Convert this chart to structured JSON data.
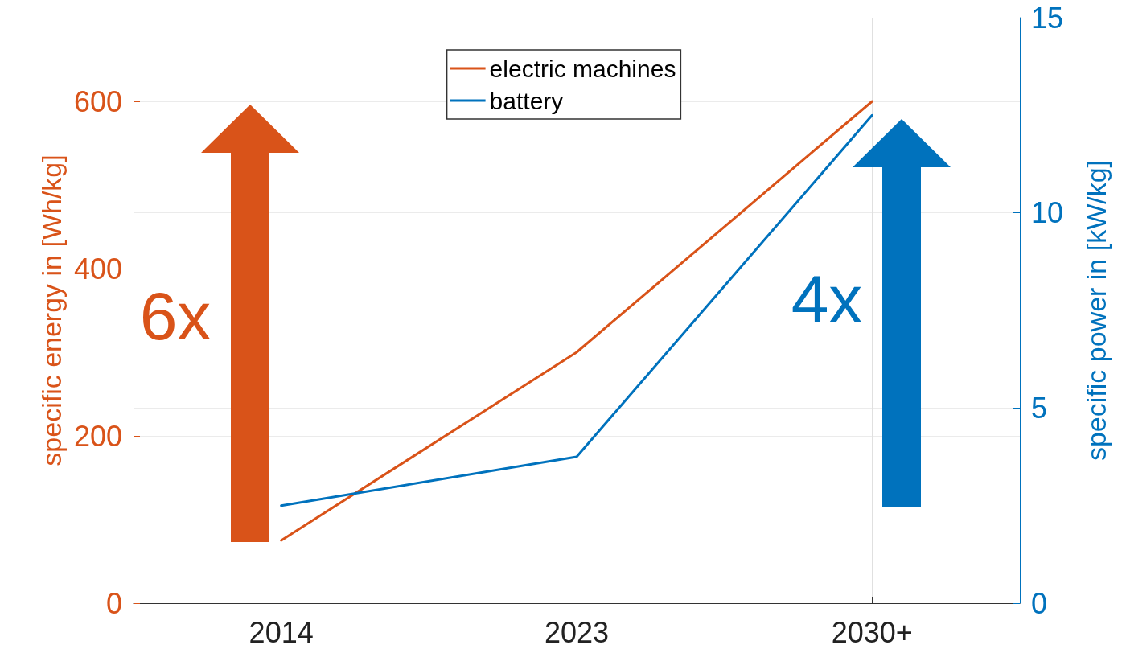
{
  "chart_data": {
    "type": "line",
    "categories": [
      "2014",
      "2023",
      "2030+"
    ],
    "ylabel": "specific energy in [Wh/kg]",
    "y2label": "specific power in [kW/kg]",
    "series": [
      {
        "name": "electric machines",
        "color": "#d95319",
        "values": [
          75,
          300,
          600
        ]
      },
      {
        "name": "battery",
        "color": "#0072bd",
        "values": [
          2.5,
          3.75,
          12.5
        ],
        "axis": "y2"
      }
    ],
    "ylim": [
      0,
      700
    ],
    "yticks": [
      0,
      200,
      400,
      600
    ],
    "y2lim": [
      0,
      15
    ],
    "y2ticks": [
      0,
      5,
      10,
      15
    ],
    "annotations": [
      "6x",
      "4x"
    ],
    "grid": true,
    "legend": "top",
    "marker": "none",
    "line_style": "solid"
  }
}
